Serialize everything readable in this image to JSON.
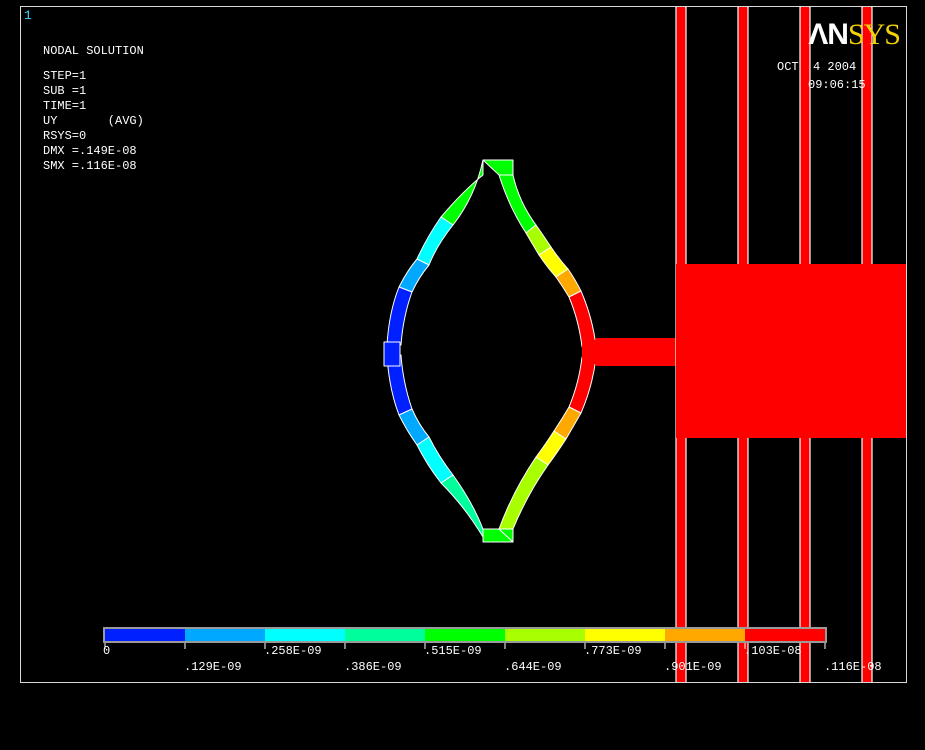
{
  "window": {
    "number": "1"
  },
  "logo": {
    "part1": "ΛN",
    "part2": "SYS"
  },
  "info": [
    "NODAL SOLUTION",
    "STEP=1",
    "SUB =1",
    "TIME=1",
    "UY       (AVG)",
    "RSYS=0",
    "DMX =.149E-08",
    "SMX =.116E-08"
  ],
  "date": "OCT  4 2004",
  "time": "09:06:15",
  "legend": {
    "colors": [
      "#0020ff",
      "#00a8ff",
      "#00ffff",
      "#00ff9c",
      "#00ff00",
      "#a8ff00",
      "#ffff00",
      "#ffa800",
      "#ff0000"
    ],
    "bottom_labels": [
      "0",
      ".258E-09",
      ".515E-09",
      ".773E-09",
      ".103E-08"
    ],
    "top_labels": [
      ".129E-09",
      ".386E-09",
      ".644E-09",
      ".901E-09",
      ".116E-08"
    ]
  }
}
